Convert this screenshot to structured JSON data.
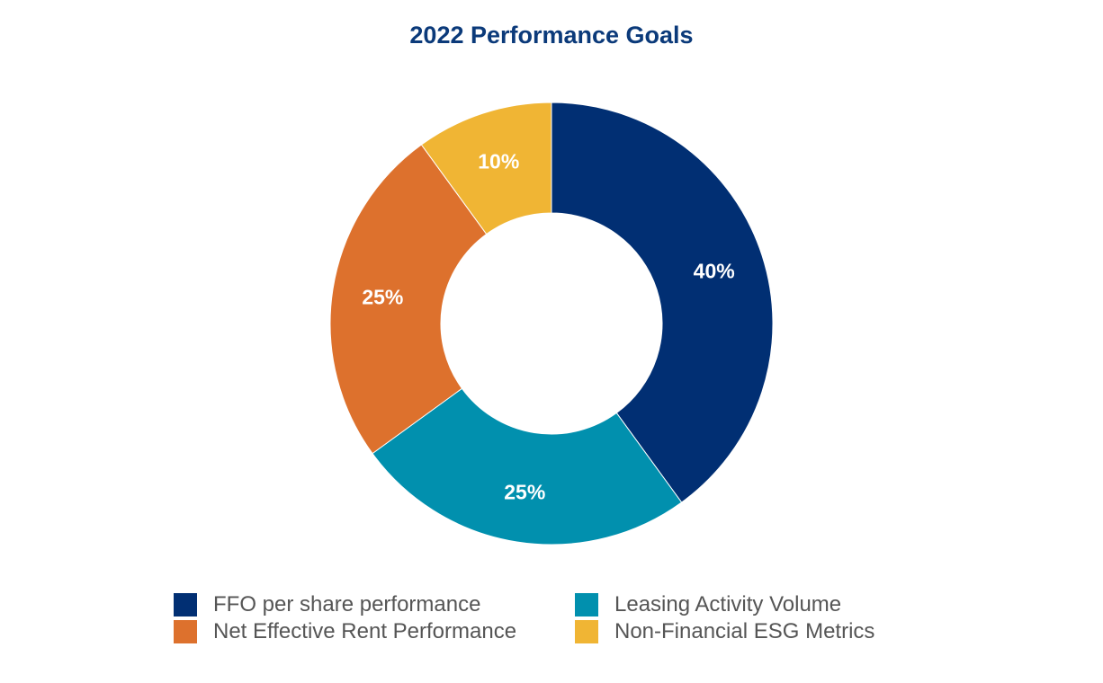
{
  "chart_data": {
    "type": "pie",
    "title": "2022 Performance Goals",
    "donut": true,
    "slices": [
      {
        "name": "FFO per share performance",
        "value": 40,
        "label": "40%",
        "color": "#012f73"
      },
      {
        "name": "Leasing Activity Volume",
        "value": 25,
        "label": "25%",
        "color": "#0190ae"
      },
      {
        "name": "Net Effective Rent Performance",
        "value": 25,
        "label": "25%",
        "color": "#dd712d"
      },
      {
        "name": "Non-Financial ESG Metrics",
        "value": 10,
        "label": "10%",
        "color": "#f0b534"
      }
    ],
    "legend": {
      "placement": "bottom",
      "order": [
        "FFO per share performance",
        "Leasing Activity Volume",
        "Net Effective Rent Performance",
        "Non-Financial ESG Metrics"
      ]
    }
  }
}
